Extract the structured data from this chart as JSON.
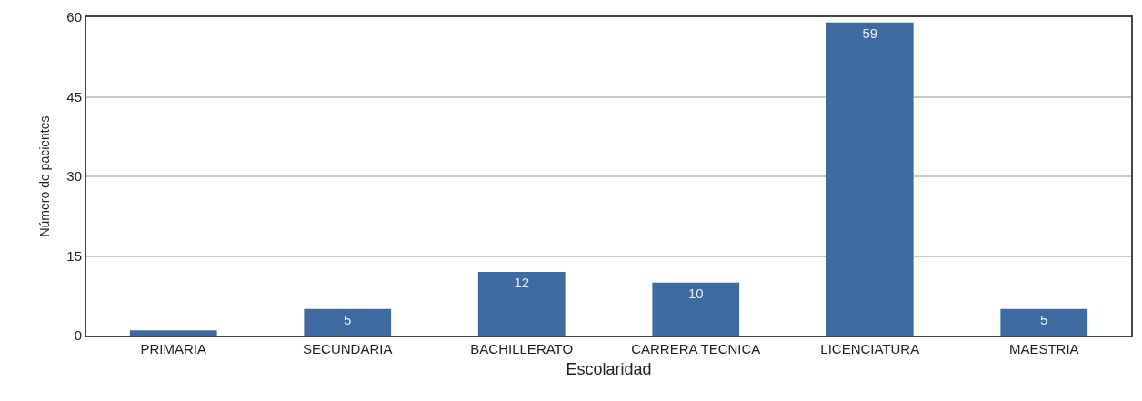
{
  "chart_data": {
    "type": "bar",
    "xlabel": "Escolaridad",
    "ylabel": "Número de pacientes",
    "categories": [
      "PRIMARIA",
      "SECUNDARIA",
      "BACHILLERATO",
      "CARRERA TECNICA",
      "LICENCIATURA",
      "MAESTRIA"
    ],
    "values": [
      1,
      5,
      12,
      10,
      59,
      5
    ],
    "value_labels": [
      null,
      "5",
      "12",
      "10",
      "59",
      "5"
    ],
    "color": "#3d6a9f",
    "ylim": [
      0,
      60
    ],
    "yticks": [
      0,
      15,
      30,
      45,
      60
    ],
    "grid": "y",
    "legend": false
  }
}
